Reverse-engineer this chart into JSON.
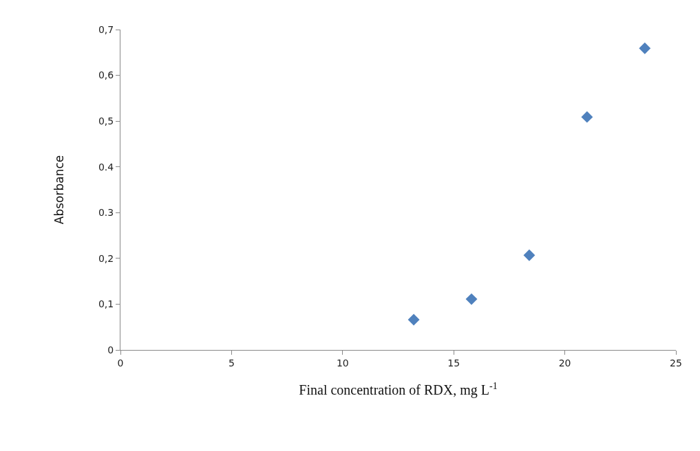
{
  "chart_data": {
    "type": "scatter",
    "xlabel": "Final concentration of RDX, mg L$^{-1}$",
    "ylabel": "Absorbance",
    "x": [
      13.2,
      15.8,
      18.4,
      21.0,
      23.6
    ],
    "series": [
      {
        "color": "#4f81bd",
        "values": [
          0.066,
          0.111,
          0.207,
          0.509,
          0.659
        ]
      }
    ],
    "marker": "diamond",
    "xlim": [
      0,
      25
    ],
    "xticks": [
      0,
      5,
      10,
      15,
      20,
      25
    ],
    "ylim": [
      0,
      0.7
    ],
    "yticks": [
      0,
      {
        "value": 0.1,
        "label": "0,1"
      },
      {
        "value": 0.2,
        "label": "0,2"
      },
      {
        "value": 0.3,
        "label": "0.3"
      },
      {
        "value": 0.4,
        "label": "0.4"
      },
      {
        "value": 0.5,
        "label": "0,5"
      },
      {
        "value": 0.6,
        "label": "0,6"
      },
      {
        "value": 0.7,
        "label": "0,7"
      }
    ]
  }
}
